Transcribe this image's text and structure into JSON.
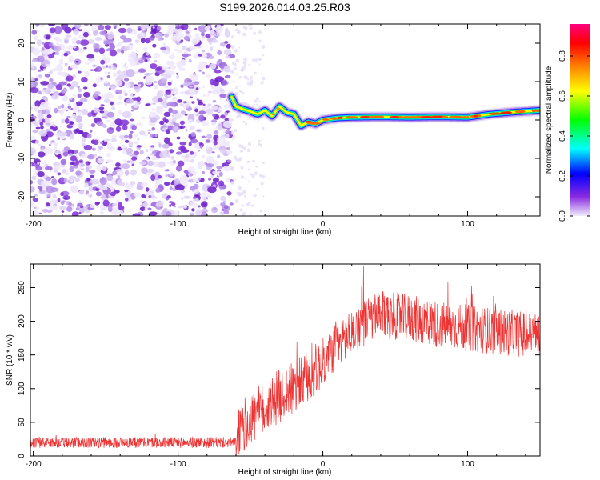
{
  "title": "S199.2026.014.03.25.R03",
  "chart_data": [
    {
      "type": "heatmap",
      "xlabel": "Height of straight line (km)",
      "ylabel": "Frequency (Hz)",
      "xlim": [
        -202,
        150
      ],
      "ylim": [
        -25,
        25
      ],
      "xticks": [
        -200,
        -100,
        0,
        100
      ],
      "yticks": [
        -20,
        -10,
        0,
        10,
        20
      ],
      "noise_region_x": [
        -202,
        -63
      ],
      "ridge": {
        "x": [
          -63,
          -60,
          -55,
          -50,
          -45,
          -40,
          -35,
          -30,
          -25,
          -20,
          -15,
          -10,
          -5,
          0,
          10,
          20,
          40,
          60,
          80,
          100,
          115,
          130,
          150
        ],
        "freq": [
          6,
          3.5,
          2.8,
          2.2,
          1.5,
          2.5,
          1,
          3.5,
          2,
          1.5,
          -1.5,
          -0.5,
          -1,
          0,
          0.5,
          0.7,
          0.8,
          0.7,
          0.8,
          0.7,
          1.5,
          2,
          2.5
        ]
      },
      "colorbar": {
        "label": "Normalized spectral amplitude",
        "ticks": [
          0.0,
          0.2,
          0.4,
          0.6,
          0.8
        ],
        "tick_labels": [
          "0.0",
          "0.2",
          "0.4",
          "0.6",
          "0.8"
        ],
        "range": [
          0,
          0.96
        ],
        "colors": [
          "#f0ecfa",
          "#8a2be2",
          "#0000ff",
          "#00ffff",
          "#00ff00",
          "#ffff00",
          "#ff8000",
          "#ff0000",
          "#ff0080"
        ]
      }
    },
    {
      "type": "line",
      "xlabel": "Height of straight line (km)",
      "ylabel": "SNR (10 * v/v)",
      "xlim": [
        -202,
        150
      ],
      "ylim": [
        0,
        285
      ],
      "xticks": [
        -200,
        -100,
        0,
        100
      ],
      "yticks": [
        0,
        50,
        100,
        150,
        200,
        250
      ],
      "series": [
        {
          "name": "SNR",
          "color": "#ee3333",
          "trend_x": [
            -202,
            -60,
            -55,
            -50,
            -40,
            -30,
            -20,
            -10,
            0,
            10,
            20,
            30,
            40,
            60,
            80,
            100,
            120,
            140,
            150
          ],
          "trend_y": [
            20,
            20,
            45,
            55,
            70,
            90,
            100,
            115,
            140,
            165,
            185,
            200,
            210,
            205,
            195,
            190,
            185,
            180,
            178
          ]
        }
      ]
    }
  ]
}
